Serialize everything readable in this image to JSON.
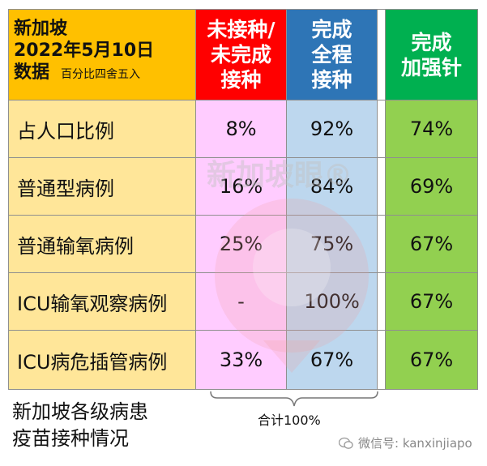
{
  "header": {
    "title_line1": "新加坡",
    "title_line2": "2022年5月10日",
    "title_line3": "数据",
    "note": "百分比四舍五入",
    "columns": [
      {
        "label_line1": "未接种/",
        "label_line2": "未完成",
        "label_line3": "接种"
      },
      {
        "label_line1": "完成",
        "label_line2": "全程",
        "label_line3": "接种"
      },
      {
        "label_line1": "完成",
        "label_line2": "加强针"
      }
    ]
  },
  "rows": [
    {
      "label": "占人口比例",
      "unvaccinated": "8%",
      "full": "92%",
      "booster": "74%"
    },
    {
      "label": "普通型病例",
      "unvaccinated": "16%",
      "full": "84%",
      "booster": "69%"
    },
    {
      "label": "普通输氧病例",
      "unvaccinated": "25%",
      "full": "75%",
      "booster": "67%"
    },
    {
      "label": "ICU输氧观察病例",
      "unvaccinated": "-",
      "full": "100%",
      "booster": "67%"
    },
    {
      "label": "ICU病危插管病例",
      "unvaccinated": "33%",
      "full": "67%",
      "booster": "67%"
    }
  ],
  "sum_label": "合计100%",
  "caption_line1": "新加坡各级病患",
  "caption_line2": "疫苗接种情况",
  "watermark_text": "新加坡眼®",
  "wechat": "微信号: kanxinjiapo",
  "colors": {
    "header_first": "#ffc000",
    "header_unvaccinated": "#ff0000",
    "header_full": "#2e75b6",
    "header_booster": "#00b050",
    "cell_label": "#ffe699",
    "cell_unvaccinated": "#ffccff",
    "cell_full": "#bdd7ee",
    "cell_booster": "#92d050"
  }
}
